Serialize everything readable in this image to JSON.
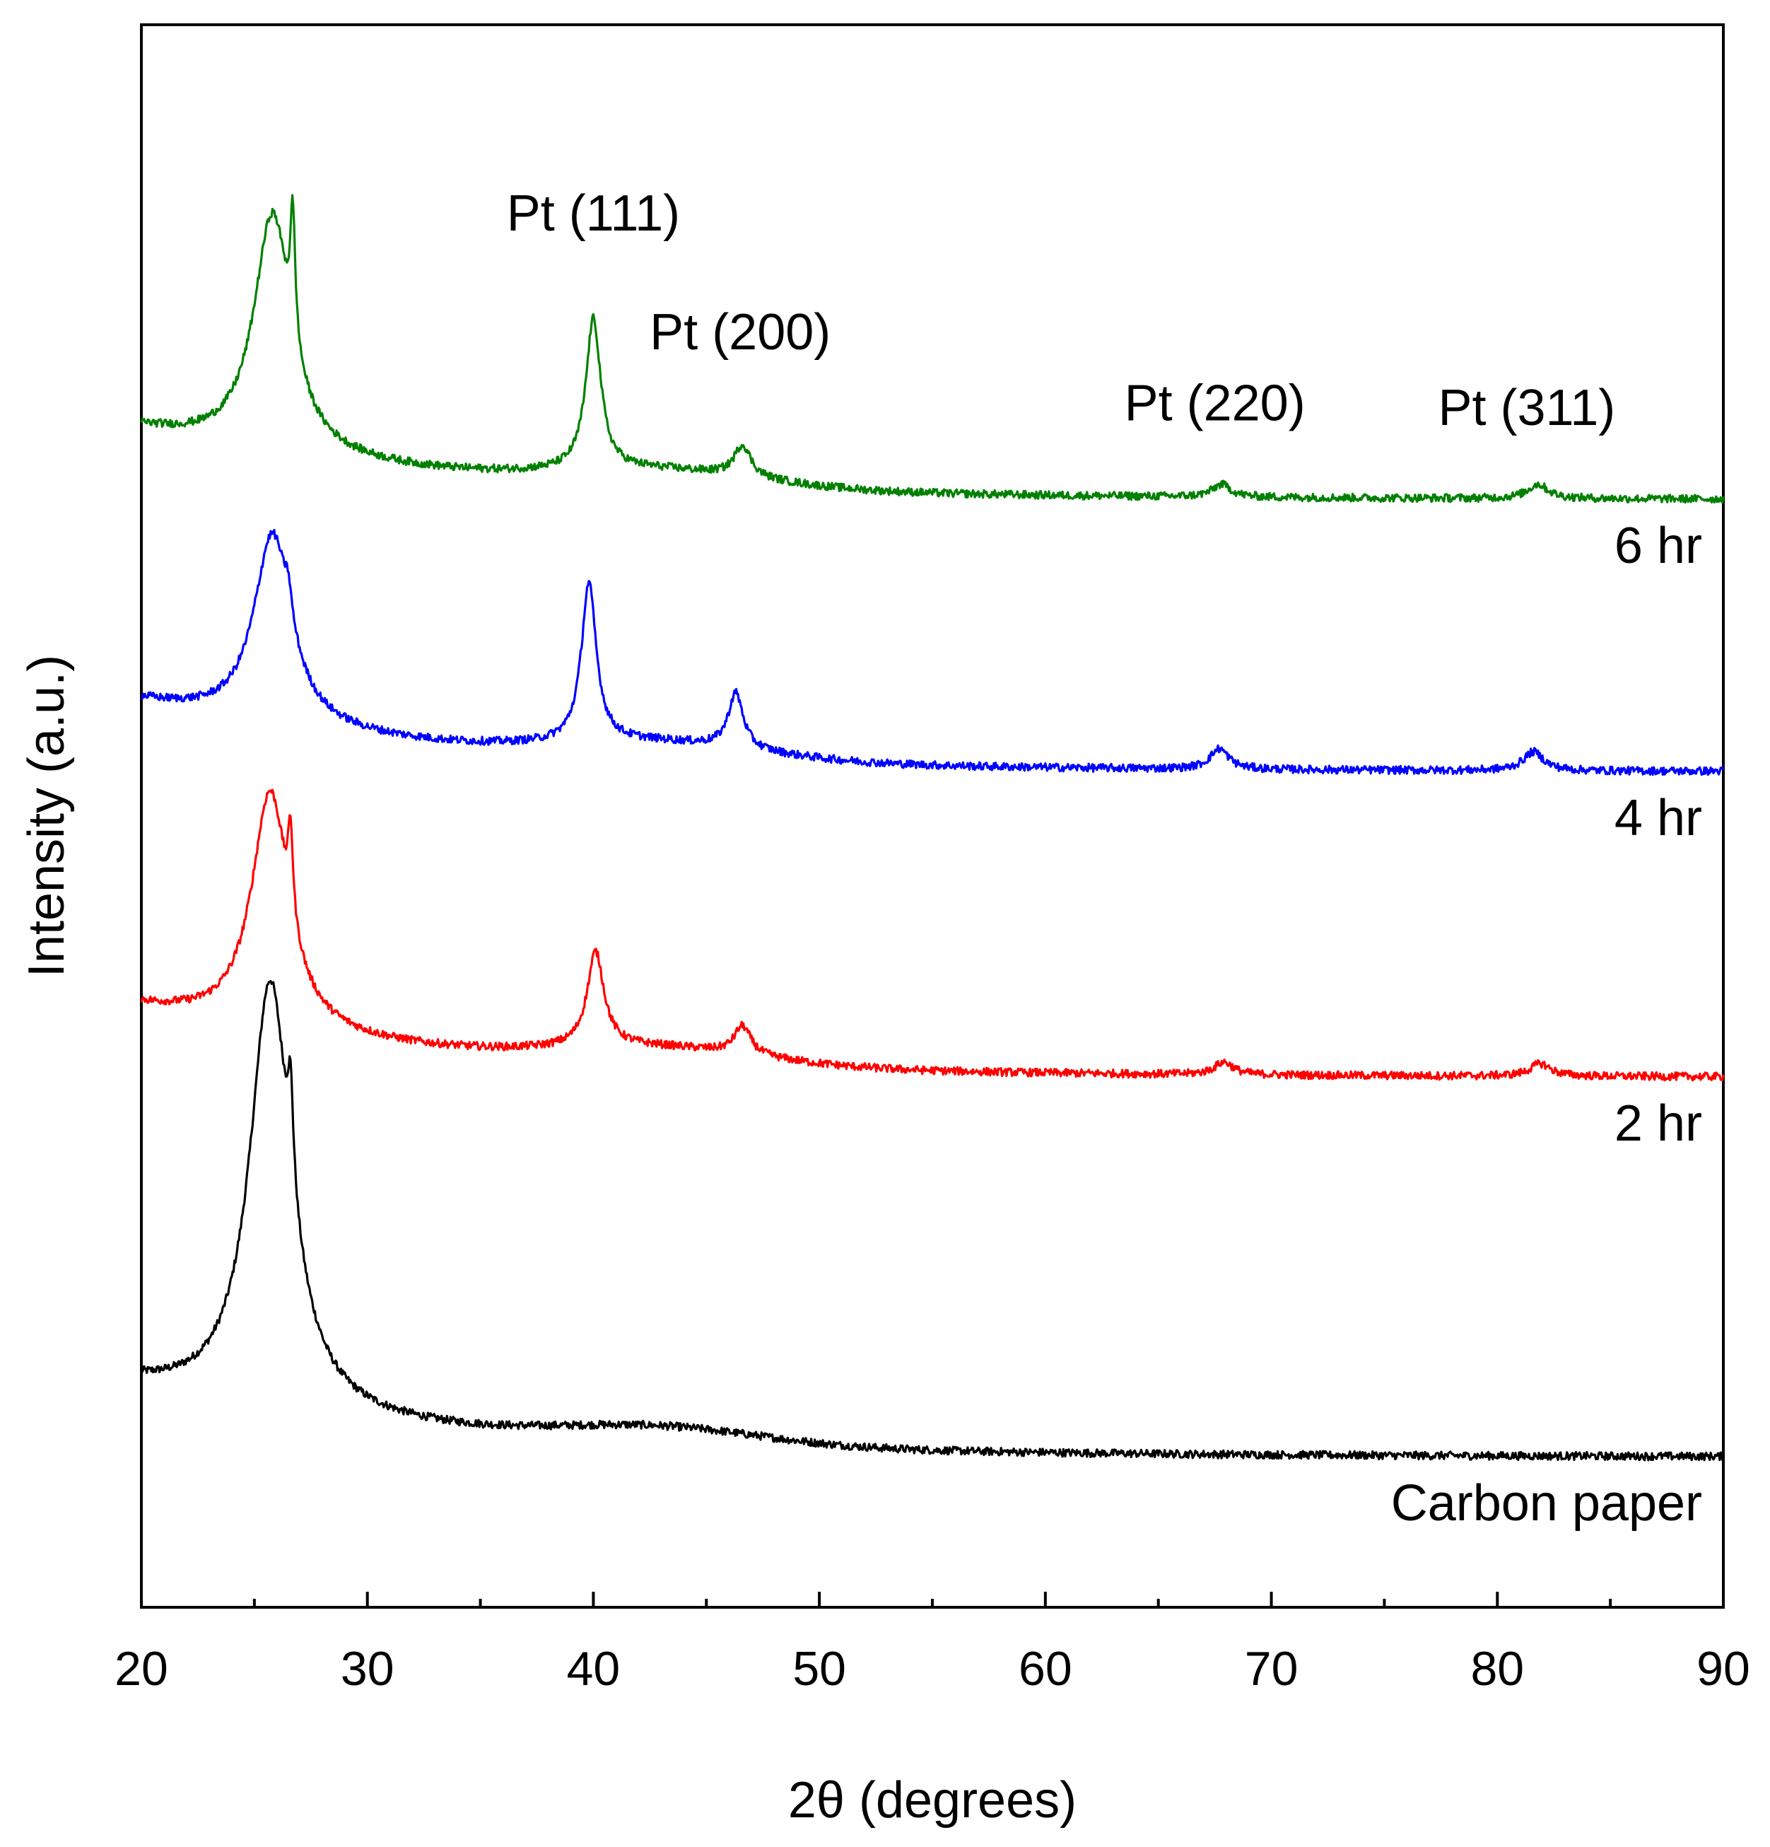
{
  "chart_data": {
    "type": "line",
    "title": "",
    "xlabel": "2θ (degrees)",
    "ylabel": "Intensity (a.u.)",
    "xlim": [
      20,
      90
    ],
    "ylim": [
      0,
      1
    ],
    "x_ticks": [
      20,
      30,
      40,
      50,
      60,
      70,
      80,
      90
    ],
    "x_tick_labels": [
      "20",
      "30",
      "40",
      "50",
      "60",
      "70",
      "80",
      "90"
    ],
    "x_minor_step": 5,
    "y_ticks_shown": false,
    "grid": false,
    "legend": "none",
    "annotations": [
      {
        "text": "Pt (111)",
        "x": 40.0,
        "y": 0.87
      },
      {
        "text": "Pt (200)",
        "x": 46.5,
        "y": 0.795
      },
      {
        "text": "Pt (220)",
        "x": 67.5,
        "y": 0.75
      },
      {
        "text": "Pt (311)",
        "x": 81.3,
        "y": 0.747
      }
    ],
    "series": [
      {
        "name": "Carbon paper",
        "label": "Carbon paper",
        "label_position": "right",
        "color": "#000000",
        "offset": 0.095,
        "peaks": [
          {
            "center": 25.7,
            "height": 0.27,
            "width": 1.1
          },
          {
            "center": 26.6,
            "height": 0.06,
            "width": 0.15
          }
        ]
      },
      {
        "name": "2 hr",
        "label": "2 hr",
        "label_position": "right",
        "color": "#ff0000",
        "offset": 0.335,
        "peaks": [
          {
            "center": 25.7,
            "height": 0.15,
            "width": 1.0
          },
          {
            "center": 26.6,
            "height": 0.055,
            "width": 0.13
          },
          {
            "center": 40.1,
            "height": 0.06,
            "width": 0.45
          },
          {
            "center": 46.6,
            "height": 0.018,
            "width": 0.45
          },
          {
            "center": 67.9,
            "height": 0.008,
            "width": 0.5
          },
          {
            "center": 81.9,
            "height": 0.008,
            "width": 0.55
          }
        ]
      },
      {
        "name": "4 hr",
        "label": "4 hr",
        "label_position": "right",
        "color": "#0000ff",
        "offset": 0.528,
        "peaks": [
          {
            "center": 25.8,
            "height": 0.12,
            "width": 1.0
          },
          {
            "center": 26.5,
            "height": 0.018,
            "width": 0.18
          },
          {
            "center": 39.8,
            "height": 0.1,
            "width": 0.4
          },
          {
            "center": 46.3,
            "height": 0.035,
            "width": 0.4
          },
          {
            "center": 67.7,
            "height": 0.013,
            "width": 0.5
          },
          {
            "center": 81.6,
            "height": 0.012,
            "width": 0.55
          }
        ]
      },
      {
        "name": "6 hr",
        "label": "6 hr",
        "label_position": "right",
        "color": "#008000",
        "offset": 0.7,
        "peaks": [
          {
            "center": 25.8,
            "height": 0.15,
            "width": 1.0
          },
          {
            "center": 26.7,
            "height": 0.08,
            "width": 0.13
          },
          {
            "center": 40.0,
            "height": 0.095,
            "width": 0.4
          },
          {
            "center": 46.6,
            "height": 0.02,
            "width": 0.45
          },
          {
            "center": 67.8,
            "height": 0.008,
            "width": 0.5
          },
          {
            "center": 81.8,
            "height": 0.009,
            "width": 0.55
          }
        ]
      }
    ]
  }
}
